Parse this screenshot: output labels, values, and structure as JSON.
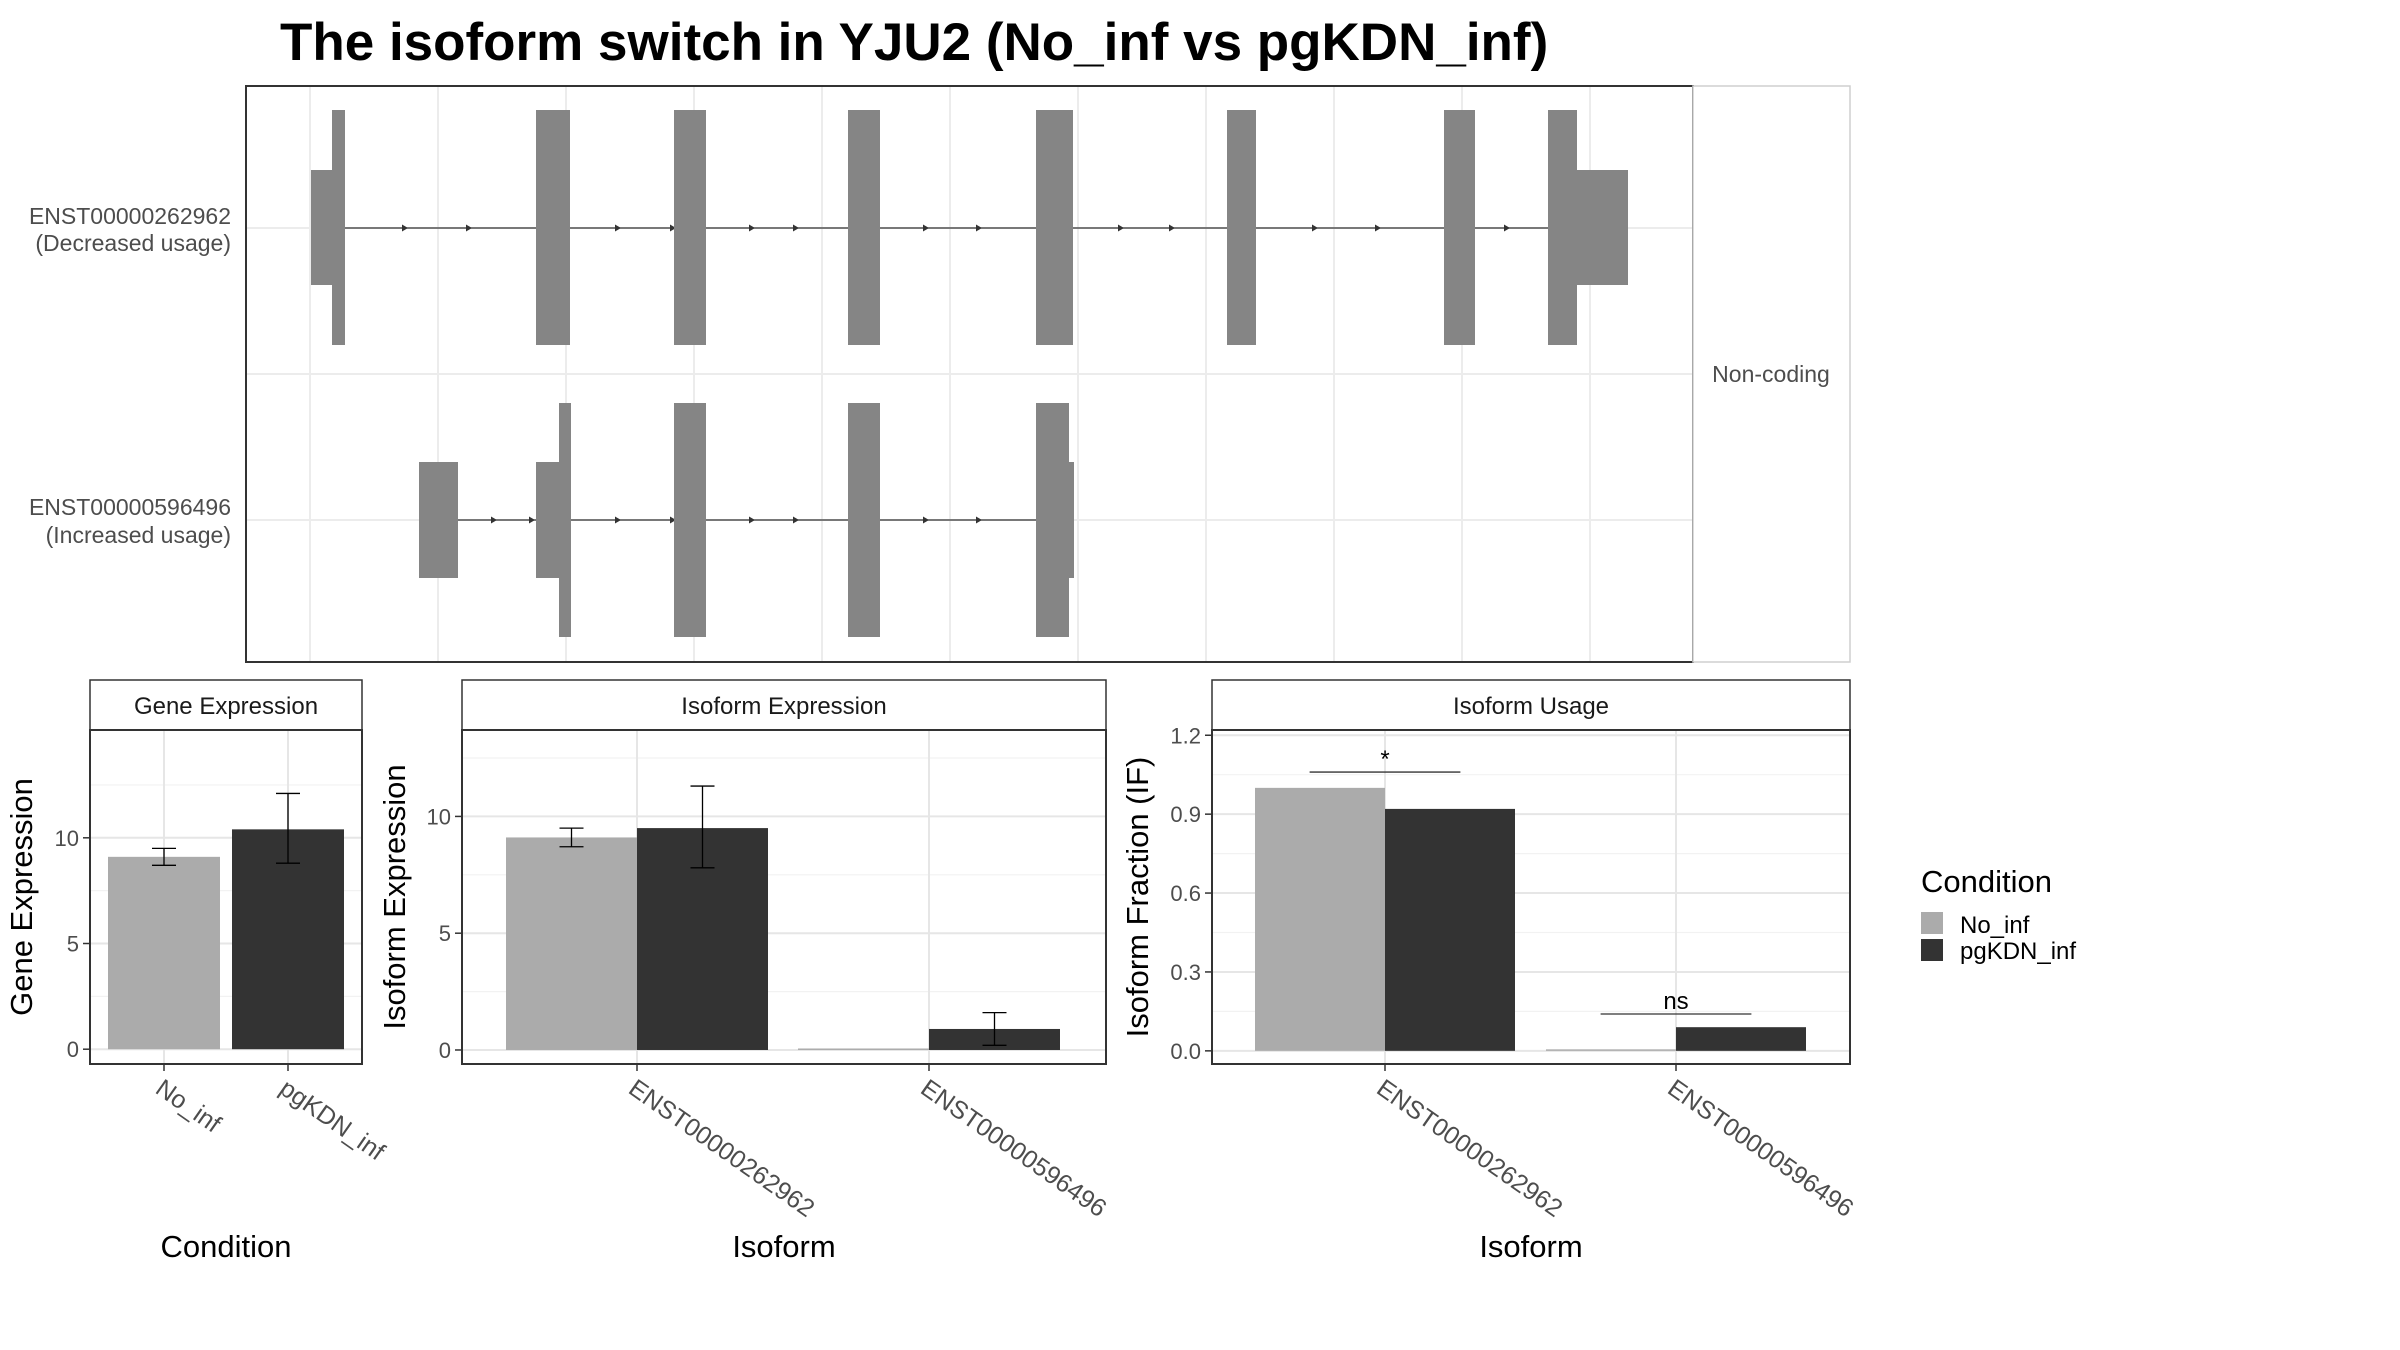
{
  "title": "The isoform switch in YJU2 (No_inf vs pgKDN_inf)",
  "colors": {
    "No_inf": "#ababab",
    "pgKDN_inf": "#333333",
    "exon": "#858585"
  },
  "structure": {
    "coding_label": "Non-coding",
    "isoforms": [
      {
        "id": "ENST00000262962",
        "usage": "(Decreased usage)"
      },
      {
        "id": "ENST00000596496",
        "usage": "(Increased usage)"
      }
    ]
  },
  "legend": {
    "title": "Condition",
    "items": [
      "No_inf",
      "pgKDN_inf"
    ]
  },
  "chart_data": [
    {
      "type": "bar",
      "title": "Gene Expression",
      "xlabel": "Condition",
      "ylabel": "Gene Expression",
      "categories": [
        "No_inf",
        "pgKDN_inf"
      ],
      "values": [
        9.1,
        10.4
      ],
      "error_low": [
        8.7,
        8.8
      ],
      "error_high": [
        9.5,
        12.1
      ],
      "yticks": [
        0,
        5,
        10
      ],
      "ylim": [
        -0.7,
        15.1
      ]
    },
    {
      "type": "bar",
      "title": "Isoform Expression",
      "xlabel": "Isoform",
      "ylabel": "Isoform Expression",
      "categories": [
        "ENST00000262962",
        "ENST00000596496"
      ],
      "series": [
        {
          "name": "No_inf",
          "values": [
            9.1,
            0.0
          ],
          "error_low": [
            8.7,
            0.0
          ],
          "error_high": [
            9.5,
            0.0
          ]
        },
        {
          "name": "pgKDN_inf",
          "values": [
            9.5,
            0.9
          ],
          "error_low": [
            7.8,
            0.2
          ],
          "error_high": [
            11.3,
            1.6
          ]
        }
      ],
      "yticks": [
        0,
        5,
        10
      ],
      "ylim": [
        -0.6,
        13.7
      ]
    },
    {
      "type": "bar",
      "title": "Isoform Usage",
      "xlabel": "Isoform",
      "ylabel": "Isoform Fraction (IF)",
      "categories": [
        "ENST00000262962",
        "ENST00000596496"
      ],
      "series": [
        {
          "name": "No_inf",
          "values": [
            1.0,
            0.0
          ]
        },
        {
          "name": "pgKDN_inf",
          "values": [
            0.92,
            0.09
          ]
        }
      ],
      "yticks": [
        "0.0",
        "0.3",
        "0.6",
        "0.9",
        "1.2"
      ],
      "ylim": [
        -0.05,
        1.22
      ],
      "significance": [
        {
          "category": "ENST00000262962",
          "label": "*",
          "y": 1.06
        },
        {
          "category": "ENST00000596496",
          "label": "ns",
          "y": 0.14
        }
      ]
    }
  ]
}
